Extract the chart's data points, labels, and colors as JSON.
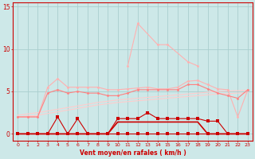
{
  "x": [
    0,
    1,
    2,
    3,
    4,
    5,
    6,
    7,
    8,
    9,
    10,
    11,
    12,
    13,
    14,
    15,
    16,
    17,
    18,
    19,
    20,
    21,
    22,
    23
  ],
  "rafales_line": [
    null,
    null,
    null,
    null,
    null,
    null,
    null,
    null,
    null,
    null,
    null,
    8,
    13,
    null,
    10.5,
    10.5,
    null,
    8.5,
    8,
    null,
    null,
    null,
    null,
    null
  ],
  "upper_pink": [
    2,
    2,
    2,
    5.5,
    6.5,
    5.5,
    5.5,
    5.5,
    5.5,
    5.2,
    5.2,
    5.3,
    5.4,
    5.5,
    5.3,
    5.3,
    5.5,
    6.2,
    6.3,
    5.8,
    5.3,
    5.2,
    2.0,
    5.2
  ],
  "mid_pink": [
    2,
    2,
    2,
    4.8,
    5.2,
    4.8,
    5.0,
    4.8,
    4.8,
    4.5,
    4.5,
    4.8,
    5.2,
    5.2,
    5.2,
    5.2,
    5.2,
    5.8,
    5.8,
    5.3,
    4.8,
    4.5,
    4.2,
    5.2
  ],
  "linear_upper": [
    2.2,
    2.35,
    2.5,
    2.7,
    2.9,
    3.1,
    3.3,
    3.5,
    3.7,
    3.85,
    4.0,
    4.1,
    4.2,
    4.3,
    4.4,
    4.5,
    4.6,
    4.7,
    4.8,
    4.9,
    5.0,
    5.05,
    5.1,
    5.15
  ],
  "linear_lower": [
    2.0,
    2.1,
    2.2,
    2.4,
    2.6,
    2.8,
    3.0,
    3.2,
    3.4,
    3.55,
    3.7,
    3.8,
    3.9,
    4.0,
    4.1,
    4.2,
    4.3,
    4.4,
    4.5,
    4.6,
    4.7,
    4.75,
    4.8,
    4.85
  ],
  "dark_red_spiky": [
    0,
    0,
    0,
    0,
    2.0,
    0,
    1.8,
    0,
    0,
    0,
    1.8,
    1.8,
    1.8,
    2.5,
    1.8,
    1.8,
    1.8,
    1.8,
    1.8,
    1.5,
    1.5,
    0,
    0,
    0
  ],
  "dark_flat": [
    0,
    0,
    0,
    0,
    0,
    0,
    0,
    0,
    0,
    0,
    1.4,
    1.4,
    1.4,
    1.4,
    1.4,
    1.4,
    1.4,
    1.4,
    1.4,
    0,
    0,
    0,
    0,
    0
  ],
  "zero_markers": [
    0,
    0,
    0,
    0,
    0,
    0,
    0,
    0,
    0,
    0,
    0,
    0,
    0,
    0,
    0,
    0,
    0,
    0,
    0,
    0,
    0,
    0,
    0,
    0
  ],
  "bg_color": "#cde8e8",
  "grid_color": "#aacece",
  "color_light_pink": "#ffb0b0",
  "color_mid_pink": "#ff8080",
  "color_linear": "#ffcccc",
  "color_dark_red": "#cc0000",
  "color_axis": "#cc0000",
  "xlabel": "Vent moyen/en rafales ( km/h )",
  "ylim": [
    -0.8,
    15.5
  ],
  "yticks": [
    0,
    5,
    10,
    15
  ],
  "xticks": [
    0,
    1,
    2,
    3,
    4,
    5,
    6,
    7,
    8,
    9,
    10,
    11,
    12,
    13,
    14,
    15,
    16,
    17,
    18,
    19,
    20,
    21,
    22,
    23
  ]
}
